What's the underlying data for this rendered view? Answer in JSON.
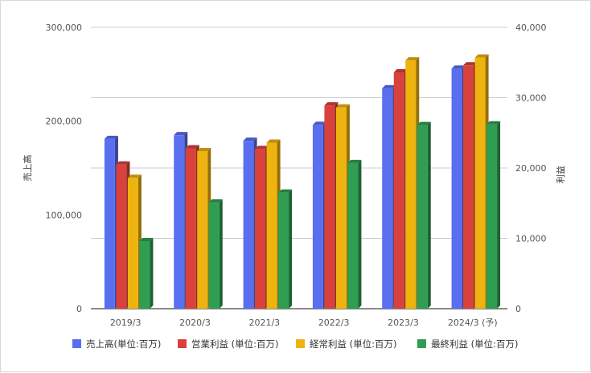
{
  "chart_data": {
    "type": "bar",
    "style": "3d",
    "categories": [
      "2019/3",
      "2020/3",
      "2021/3",
      "2022/3",
      "2023/3",
      "2024/3 (予)"
    ],
    "left_axis": {
      "label": "売上高",
      "ylim": [
        0,
        300000
      ],
      "ticks": [
        "0",
        "100,000",
        "200,000",
        "300,000"
      ]
    },
    "right_axis": {
      "label": "利益",
      "ylim": [
        0,
        40000
      ],
      "ticks": [
        "0",
        "10,000",
        "20,000",
        "30,000",
        "40,000"
      ]
    },
    "grid": true,
    "legend_position": "bottom",
    "series": [
      {
        "name": "売上高(単位:百万)",
        "axis": "left",
        "color": "#5a6ff0",
        "values": [
          181000,
          185000,
          179000,
          196000,
          235000,
          256000
        ]
      },
      {
        "name": "営業利益 (単位:百万)",
        "axis": "right",
        "color": "#d9423c",
        "values": [
          20500,
          22800,
          22700,
          28900,
          33600,
          34600
        ]
      },
      {
        "name": "経常利益 (単位:百万)",
        "axis": "right",
        "color": "#efb30f",
        "values": [
          18600,
          22400,
          23600,
          28600,
          35300,
          35700
        ]
      },
      {
        "name": "最終利益 (単位:百万)",
        "axis": "right",
        "color": "#2f9e53",
        "values": [
          9600,
          15100,
          16500,
          20700,
          26100,
          26200
        ]
      }
    ]
  }
}
